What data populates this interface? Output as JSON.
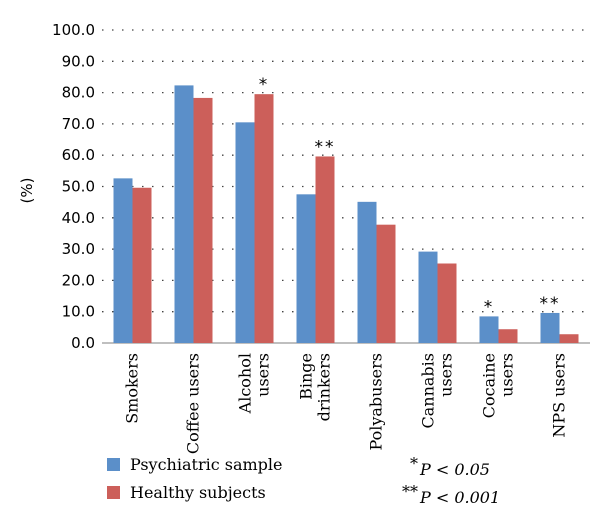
{
  "chart_data": {
    "type": "bar",
    "ylabel": "(%)",
    "ylim": [
      0,
      100
    ],
    "ytick_step": 10,
    "ytick_decimals": 1,
    "grid": "dotted horizontal",
    "categories": [
      [
        "Smokers"
      ],
      [
        "Coffee users"
      ],
      [
        "Alcohol",
        "users"
      ],
      [
        "Binge",
        "drinkers"
      ],
      [
        "Polyabusers"
      ],
      [
        "Cannabis",
        "users"
      ],
      [
        "Cocaine",
        "users"
      ],
      [
        "NPS users"
      ]
    ],
    "series": [
      {
        "name": "Psychiatric sample",
        "color": "#5b8fc9",
        "values": [
          52.6,
          82.3,
          70.5,
          47.5,
          45.1,
          29.2,
          8.5,
          9.6
        ]
      },
      {
        "name": "Healthy subjects",
        "color": "#cc5f5a",
        "values": [
          49.6,
          78.3,
          79.5,
          59.6,
          37.8,
          25.4,
          4.4,
          2.8
        ]
      }
    ],
    "significance": [
      {
        "category": 2,
        "series": 1,
        "marker": "*"
      },
      {
        "category": 3,
        "series": 1,
        "marker": "**"
      },
      {
        "category": 6,
        "series": 0,
        "marker": "*"
      },
      {
        "category": 7,
        "series": 0,
        "marker": "**"
      }
    ],
    "notes": [
      {
        "marker": "*",
        "text": "P < 0.05"
      },
      {
        "marker": "**",
        "text": "P < 0.001"
      }
    ]
  }
}
